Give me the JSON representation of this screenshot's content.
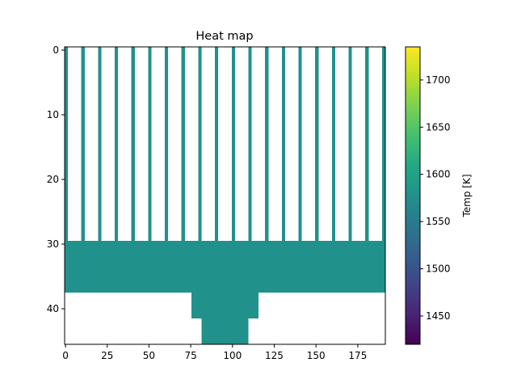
{
  "chart_data": {
    "type": "heatmap",
    "title": "Heat map",
    "xlabel": "",
    "ylabel": "",
    "xlim": [
      -0.5,
      191.5
    ],
    "ylim": [
      45.5,
      -0.5
    ],
    "x_ticks": [
      0,
      25,
      50,
      75,
      100,
      125,
      150,
      175
    ],
    "y_ticks": [
      0,
      10,
      20,
      30,
      40
    ],
    "colorbar": {
      "label": "Temp [K]",
      "range": [
        1420,
        1735
      ],
      "ticks": [
        1450,
        1500,
        1550,
        1600,
        1650,
        1700
      ],
      "colormap": "viridis"
    },
    "value_filled": 1578,
    "fill_color": "#21918c",
    "empty_color": "#ffffff",
    "regions": [
      {
        "name": "fins",
        "x0": 0,
        "x1": 191,
        "y0": 0,
        "y1": 29,
        "fin_pitch": 10,
        "fin_width": 2,
        "fin_count": 20
      },
      {
        "name": "base",
        "x0": 0,
        "x1": 191,
        "y0": 30,
        "y1": 37
      },
      {
        "name": "pedestal",
        "x0": 76,
        "x1": 115,
        "y0": 38,
        "y1": 41
      },
      {
        "name": "stem",
        "x0": 82,
        "x1": 109,
        "y0": 42,
        "y1": 45
      }
    ]
  }
}
